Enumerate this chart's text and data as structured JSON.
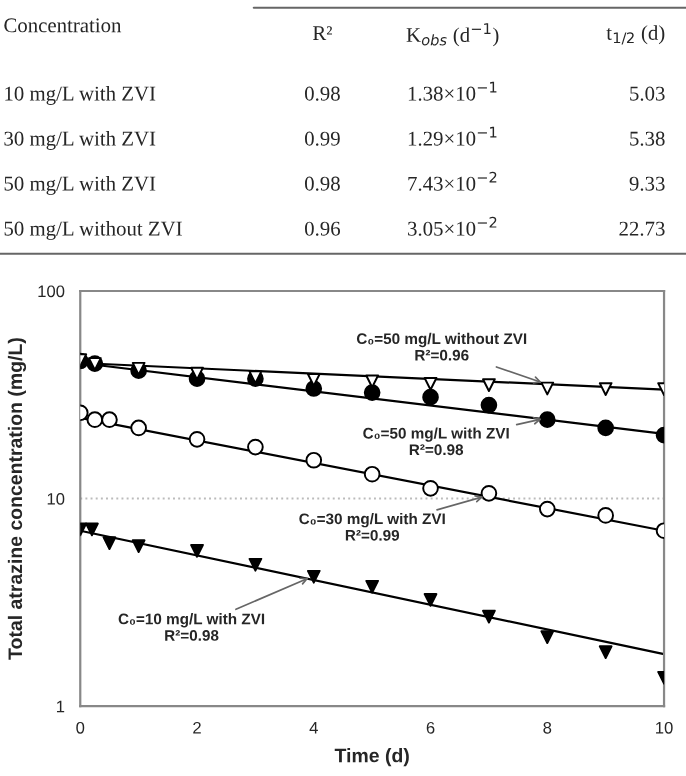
{
  "chart_data": {
    "type": "scatter",
    "xlabel": "Time (d)",
    "ylabel": "Total atrazine concentration (mg/L)",
    "x": [
      0,
      0.25,
      1,
      2,
      3,
      4,
      5,
      6,
      7,
      8,
      9,
      10
    ],
    "series": [
      {
        "color": "#ffffff",
        "marker": "triangle",
        "values": [
          46.4,
          44.5,
          42.2,
          40,
          38.4,
          37.3,
          36.7,
          35.7,
          35.2,
          33.9,
          33.7,
          33.7
        ]
      },
      {
        "color": "#000000",
        "marker": "circle",
        "values": [
          46,
          44.7,
          41.3,
          37.8,
          37.8,
          33.9,
          32.4,
          30.8,
          28.2,
          24.0,
          21.9,
          20.2
        ]
      },
      {
        "color": "#ffffff",
        "marker": "circle",
        "x": [
          0,
          0.25,
          0.5,
          1,
          2,
          3,
          4,
          5,
          6,
          7,
          8,
          9,
          10
        ],
        "values": [
          25.9,
          24.0,
          24.0,
          21.9,
          19.3,
          17.7,
          15.3,
          13.1,
          11.2,
          10.6,
          8.9,
          8.3,
          7.0
        ]
      },
      {
        "color": "#000000",
        "marker": "triangle",
        "x": [
          0,
          0.2,
          0.5,
          1,
          2,
          3,
          4,
          5,
          6,
          7,
          8,
          9,
          10
        ],
        "values": [
          7.1,
          7.1,
          6.1,
          5.9,
          5.6,
          4.8,
          4.2,
          3.76,
          3.25,
          2.7,
          2.15,
          1.82,
          1.37
        ]
      },
      {
        "type": "line",
        "color": "#000000",
        "x": [
          0,
          10
        ],
        "values": [
          45,
          33.5
        ]
      },
      {
        "type": "line",
        "color": "#000000",
        "x": [
          0,
          10
        ],
        "values": [
          45,
          20.5
        ]
      },
      {
        "type": "line",
        "color": "#000000",
        "x": [
          0,
          10
        ],
        "values": [
          24.5,
          7.0
        ]
      },
      {
        "type": "line",
        "color": "#000000",
        "x": [
          0,
          10
        ],
        "values": [
          7.0,
          1.78
        ]
      }
    ],
    "log": "y",
    "xlim": [
      0,
      10
    ],
    "xticks": [
      0,
      2,
      4,
      6,
      8,
      10
    ],
    "ylim": [
      1,
      100
    ],
    "yticks": [
      1,
      10,
      100
    ],
    "grid": "y",
    "annotations": [
      "Concentration",
      "R²",
      "K$_{obs}$ (d$^{−1}$)",
      "t$_{1/2}$ (d)",
      "10 mg/L with ZVI",
      "0.98",
      "1.38×10$^{−1}$",
      "5.03",
      "30 mg/L with ZVI",
      "0.99",
      "1.29×10$^{−1}$",
      "5.38",
      "50 mg/L with ZVI",
      "0.98",
      "7.43×10$^{−2}$",
      "9.33",
      "50 mg/L without ZVI",
      "0.96",
      "3.05×10$^{−2}$",
      "22.73",
      {
        "text": "C₀=50 mg/L without ZVI\nR²=0.96",
        "x": 8,
        "y": 35.5
      },
      {
        "text": "C₀=50 mg/L with ZVI\nR²=0.98",
        "x": 8,
        "y": 24.5
      },
      {
        "text": "C₀=30 mg/L with ZVI\nR²=0.99",
        "x": 7,
        "y": 10.4
      },
      {
        "text": "C₀=10 mg/L with ZVI\nR²=0.98",
        "x": 4,
        "y": 4.25
      }
    ]
  }
}
